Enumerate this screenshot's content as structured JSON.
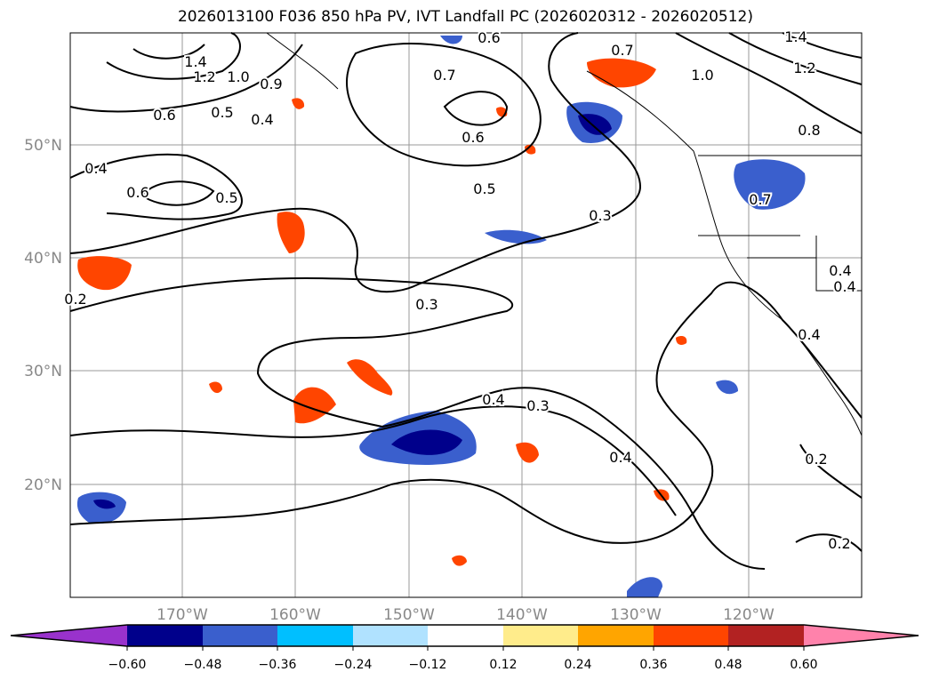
{
  "title": "2026013100 F036 850 hPa PV, IVT Landfall PC (2026020312 - 2026020512)",
  "lat_labels": [
    "50°N",
    "40°N",
    "30°N",
    "20°N"
  ],
  "lon_labels": [
    "170°W",
    "160°W",
    "150°W",
    "140°W",
    "130°W",
    "120°W"
  ],
  "contour_labels": [
    "1.4",
    "1.2",
    "1.0",
    "0.9",
    "0.6",
    "0.5",
    "0.4",
    "0.4",
    "0.6",
    "0.5",
    "0.2",
    "0.6",
    "0.7",
    "0.6",
    "0.5",
    "0.7",
    "0.3",
    "0.3",
    "0.4",
    "0.3",
    "0.4",
    "0.2",
    "0.2",
    "0.4",
    "0.4",
    "1.4",
    "1.2",
    "1.0",
    "0.8",
    "0.7",
    "0.4"
  ],
  "colorbar": {
    "colors": [
      "#9932cc",
      "#00008b",
      "#3a5fcd",
      "#00bfff",
      "#b0e2ff",
      "#ffffff",
      "#ffec8b",
      "#ffa500",
      "#ff4500",
      "#b22222",
      "#ff82ab"
    ],
    "ticks": [
      "−0.60",
      "−0.48",
      "−0.36",
      "−0.24",
      "−0.12",
      "0.12",
      "0.24",
      "0.36",
      "0.48",
      "0.60"
    ]
  }
}
